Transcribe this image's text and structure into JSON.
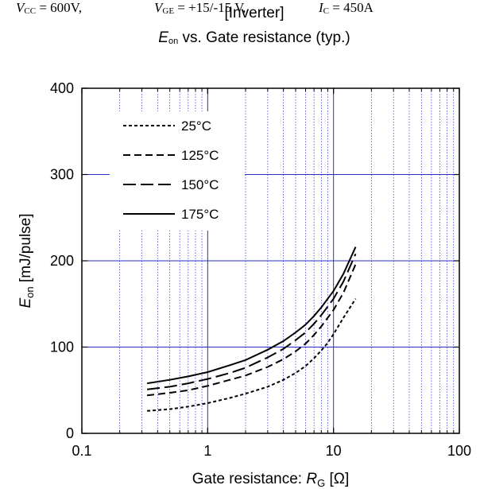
{
  "header": {
    "title_line1": "[Inverter]",
    "title_sym": "E",
    "title_sub": "on",
    "title_rest": " vs. Gate resistance  (typ.)",
    "conditions": [
      {
        "sym": "V",
        "sub": "CC",
        "rest": " = 600V,"
      },
      {
        "sym": "V",
        "sub": "GE",
        "rest": " = +15/-15 V,"
      },
      {
        "sym": "I",
        "sub": "C",
        "rest": " = 450A"
      }
    ]
  },
  "chart_data": {
    "type": "line",
    "title": "[Inverter] Eon vs. Gate resistance (typ.)",
    "subtitle": "VCC = 600V, VGE = +15/-15 V, IC = 450A",
    "xlabel": "Gate resistance: RG [Ω]",
    "xlabel_prefix": "Gate resistance: ",
    "xlabel_sym": "R",
    "xlabel_sub": "G",
    "xlabel_unit": " [Ω]",
    "ylabel": "Eon [mJ/pulse]",
    "ylabel_sym": "E",
    "ylabel_sub": "on",
    "ylabel_unit": " [mJ/pulse]",
    "x_scale": "log",
    "xlim": [
      0.1,
      100
    ],
    "ylim": [
      0,
      400
    ],
    "x_ticks": [
      0.1,
      1,
      10,
      100
    ],
    "x_tick_labels": [
      "0.1",
      "1",
      "10",
      "100"
    ],
    "y_ticks": [
      0,
      100,
      200,
      300,
      400
    ],
    "y_tick_labels": [
      "0",
      "100",
      "200",
      "300",
      "400"
    ],
    "grid": true,
    "legend_position": "top-left",
    "colors": {
      "grid": "#2a2ac8",
      "line": "#000000"
    },
    "series": [
      {
        "name": "25°C",
        "dash": "4,3",
        "x": [
          0.33,
          0.5,
          0.7,
          1,
          1.5,
          2,
          3,
          4,
          5,
          6,
          7,
          8,
          9,
          10,
          12,
          15
        ],
        "y": [
          26,
          28,
          31,
          35,
          41,
          46,
          54,
          62,
          70,
          78,
          87,
          96,
          105,
          115,
          134,
          156
        ]
      },
      {
        "name": "125°C",
        "dash": "9,5",
        "x": [
          0.33,
          0.5,
          0.7,
          1,
          1.5,
          2,
          3,
          4,
          5,
          6,
          7,
          8,
          9,
          10,
          12,
          15
        ],
        "y": [
          44,
          47,
          50,
          55,
          62,
          67,
          77,
          86,
          95,
          104,
          114,
          124,
          134,
          143,
          163,
          196
        ]
      },
      {
        "name": "150°C",
        "dash": "16,6",
        "x": [
          0.33,
          0.5,
          0.7,
          1,
          1.5,
          2,
          3,
          4,
          5,
          6,
          7,
          8,
          9,
          10,
          12,
          15
        ],
        "y": [
          51,
          54,
          58,
          63,
          70,
          76,
          88,
          98,
          108,
          117,
          127,
          137,
          147,
          156,
          176,
          208
        ]
      },
      {
        "name": "175°C",
        "dash": "",
        "x": [
          0.33,
          0.5,
          0.7,
          1,
          1.5,
          2,
          3,
          4,
          5,
          6,
          7,
          8,
          9,
          10,
          12,
          15
        ],
        "y": [
          58,
          62,
          66,
          71,
          79,
          85,
          97,
          107,
          117,
          126,
          136,
          146,
          156,
          165,
          185,
          216
        ]
      }
    ]
  }
}
